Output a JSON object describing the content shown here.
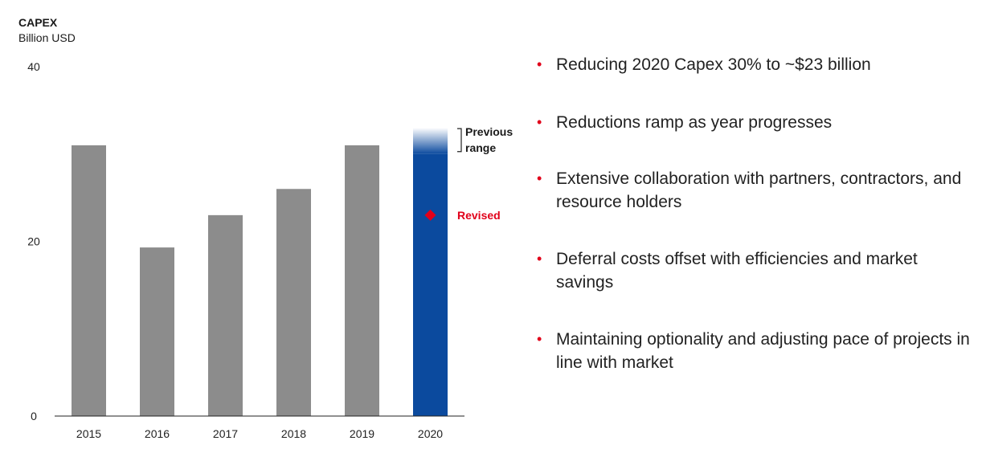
{
  "chart_data": {
    "type": "bar",
    "title": "CAPEX",
    "subtitle": "Billion USD",
    "categories": [
      "2015",
      "2016",
      "2017",
      "2018",
      "2019",
      "2020"
    ],
    "values": [
      31,
      19.3,
      23,
      26,
      31,
      30
    ],
    "ylim": [
      0,
      40
    ],
    "yticks": [
      0,
      20,
      40
    ],
    "previous_range": [
      30,
      33
    ],
    "revised": 23,
    "annotations": {
      "previous_range": "Previous range",
      "revised": "Revised"
    },
    "grid": false,
    "colors": {
      "bar": "#8c8c8c",
      "highlight": "#0b4a9e",
      "revised": "#e1001a"
    }
  },
  "bullets": [
    "Reducing 2020 Capex 30% to ~$23 billion",
    "Reductions ramp as year progresses",
    "Extensive collaboration with partners, contractors, and resource holders",
    "Deferral costs offset with efficiencies and market savings",
    "Maintaining optionality and adjusting pace of projects in line with market"
  ]
}
